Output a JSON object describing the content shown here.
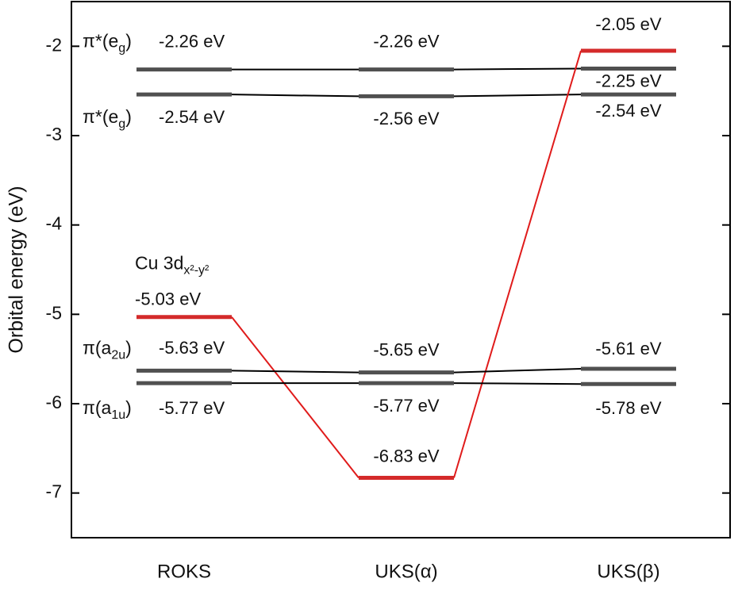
{
  "chart_data": {
    "type": "energy-level",
    "y_label": "Orbital energy (eV)",
    "categories": [
      "ROKS",
      "UKS(α)",
      "UKS(β)"
    ],
    "ylim": [
      -7.5,
      -1.5
    ],
    "yticks": [
      -7,
      -6,
      -5,
      -4,
      -3,
      -2
    ],
    "series": [
      {
        "name": [
          "π*(e",
          "g",
          ")"
        ],
        "color": "#505050",
        "values": [
          -2.26,
          -2.26,
          -2.25
        ],
        "value_labels": [
          "-2.26 eV",
          "-2.26 eV",
          "-2.25 eV"
        ]
      },
      {
        "name": [
          "π*(e",
          "g",
          ")"
        ],
        "color": "#505050",
        "values": [
          -2.54,
          -2.56,
          -2.54
        ],
        "value_labels": [
          "-2.54 eV",
          "-2.56 eV",
          "-2.54 eV"
        ]
      },
      {
        "name": [
          "Cu 3d",
          "x²-y²"
        ],
        "color": "#d42a2a",
        "values": [
          -5.03,
          -6.83,
          -2.05
        ],
        "value_labels": [
          "-5.03 eV",
          "-6.83 eV",
          "-2.05 eV"
        ]
      },
      {
        "name": [
          "π(a",
          "2u",
          ")"
        ],
        "color": "#505050",
        "values": [
          -5.63,
          -5.65,
          -5.61
        ],
        "value_labels": [
          "-5.63 eV",
          "-5.65 eV",
          "-5.61 eV"
        ]
      },
      {
        "name": [
          "π(a",
          "1u",
          ")"
        ],
        "color": "#505050",
        "values": [
          -5.77,
          -5.77,
          -5.78
        ],
        "value_labels": [
          "-5.77 eV",
          "-5.77 eV",
          "-5.78 eV"
        ]
      }
    ]
  }
}
